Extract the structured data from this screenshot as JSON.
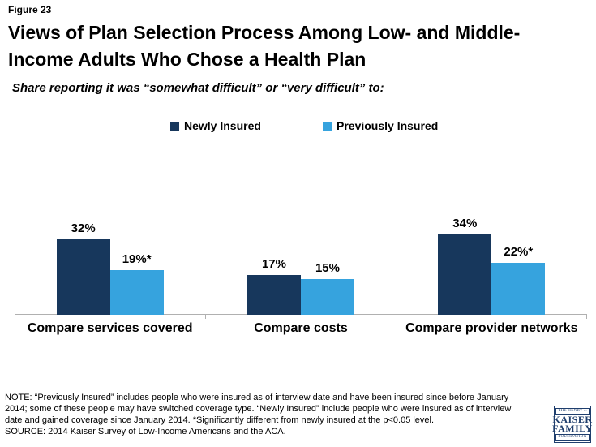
{
  "header": {
    "figure_label": "Figure 23",
    "title_line1": "Views of Plan Selection Process Among Low- and Middle-",
    "title_line2": "Income Adults Who Chose a Health Plan",
    "subtitle": "Share reporting it was “somewhat difficult” or “very difficult” to:"
  },
  "chart_data": {
    "type": "bar",
    "categories": [
      "Compare services covered",
      "Compare costs",
      "Compare provider networks"
    ],
    "series": [
      {
        "name": "Newly Insured",
        "color": "#17375c",
        "values": [
          32,
          17,
          34
        ],
        "labels": [
          "32%",
          "17%",
          "34%"
        ]
      },
      {
        "name": "Previously Insured",
        "color": "#36a3de",
        "values": [
          19,
          15,
          22
        ],
        "labels": [
          "19%*",
          "15%",
          "22%*"
        ]
      }
    ],
    "unit": "%",
    "ylim": [
      0,
      40
    ],
    "gridlines": false,
    "y_axis_shown": false,
    "legend_position": "top",
    "axis_color": "#b0b0b0"
  },
  "footer": {
    "note_line1": "NOTE: “Previously Insured” includes people who were insured as of interview date and have been insured since before January",
    "note_line2": "2014; some of these people may have switched coverage type. “Newly Insured” include people who were insured as of interview",
    "note_line3": "date and gained coverage since January 2014. *Significantly different from newly insured at the p<0.05 level.",
    "source": "SOURCE: 2014 Kaiser Survey of Low-Income Americans and the ACA."
  },
  "logo": {
    "line1": "THE HENRY J.",
    "line2": "KAISER",
    "line3": "FAMILY",
    "line4": "FOUNDATION",
    "color": "#1f3e6d"
  }
}
